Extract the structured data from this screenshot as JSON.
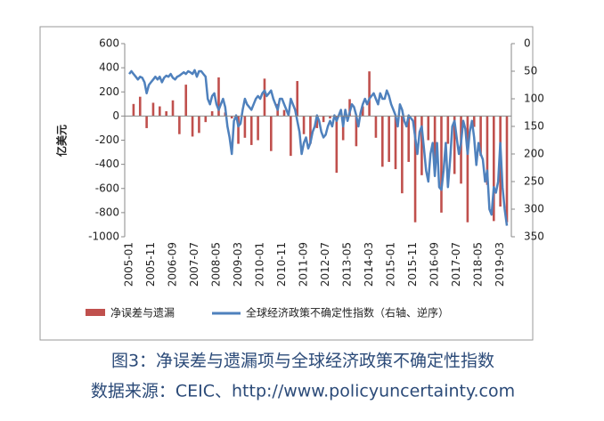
{
  "chart_data": {
    "type": "bar_line",
    "ylabel": "亿美元",
    "ylim": [
      -1000,
      600
    ],
    "yticks": [
      -1000,
      -800,
      -600,
      -400,
      -200,
      0,
      200,
      400,
      600
    ],
    "y2lim": [
      0,
      350
    ],
    "y2ticks": [
      0,
      50,
      100,
      150,
      200,
      250,
      300,
      350
    ],
    "y2_reversed": true,
    "categories": [
      "2005-01",
      null,
      null,
      null,
      null,
      null,
      null,
      null,
      null,
      null,
      "2005-11",
      null,
      null,
      null,
      null,
      null,
      null,
      null,
      null,
      null,
      "2006-09",
      null,
      null,
      null,
      null,
      null,
      null,
      null,
      null,
      null,
      "2007-07",
      null,
      null,
      null,
      null,
      null,
      null,
      null,
      null,
      null,
      "2008-05",
      null,
      null,
      null,
      null,
      null,
      null,
      null,
      null,
      null,
      "2009-03",
      null,
      null,
      null,
      null,
      null,
      null,
      null,
      null,
      null,
      "2010-01",
      null,
      null,
      null,
      null,
      null,
      null,
      null,
      null,
      null,
      "2010-11",
      null,
      null,
      null,
      null,
      null,
      null,
      null,
      null,
      null,
      "2011-09",
      null,
      null,
      null,
      null,
      null,
      null,
      null,
      null,
      null,
      "2012-07",
      null,
      null,
      null,
      null,
      null,
      null,
      null,
      null,
      null,
      "2013-05",
      null,
      null,
      null,
      null,
      null,
      null,
      null,
      null,
      null,
      "2014-03",
      null,
      null,
      null,
      null,
      null,
      null,
      null,
      null,
      null,
      "2015-01",
      null,
      null,
      null,
      null,
      null,
      null,
      null,
      null,
      null,
      "2015-11",
      null,
      null,
      null,
      null,
      null,
      null,
      null,
      null,
      null,
      "2016-09",
      null,
      null,
      null,
      null,
      null,
      null,
      null,
      null,
      null,
      "2017-07",
      null,
      null,
      null,
      null,
      null,
      null,
      null,
      null,
      null,
      "2018-05",
      null,
      null,
      null,
      null,
      null,
      null,
      null,
      null,
      null,
      "2019-03",
      null,
      null,
      null
    ],
    "series": [
      {
        "name": "净误差与遗漏",
        "type": "bar",
        "axis": "y",
        "color": "#c0504d",
        "values": [
          null,
          null,
          100,
          null,
          null,
          160,
          null,
          null,
          -100,
          null,
          null,
          110,
          null,
          null,
          80,
          null,
          null,
          40,
          null,
          null,
          130,
          null,
          null,
          -150,
          null,
          null,
          260,
          null,
          null,
          -170,
          null,
          null,
          -140,
          null,
          null,
          -50,
          null,
          null,
          40,
          null,
          null,
          320,
          null,
          null,
          30,
          null,
          null,
          -20,
          null,
          null,
          -230,
          null,
          null,
          -180,
          null,
          null,
          -240,
          null,
          null,
          -200,
          null,
          null,
          310,
          null,
          null,
          -290,
          null,
          null,
          100,
          null,
          null,
          50,
          null,
          null,
          -330,
          null,
          null,
          290,
          null,
          null,
          -150,
          null,
          null,
          -230,
          null,
          null,
          -100,
          null,
          null,
          -50,
          null,
          null,
          -20,
          null,
          null,
          -470,
          null,
          null,
          -200,
          null,
          null,
          140,
          null,
          null,
          -250,
          null,
          null,
          80,
          null,
          null,
          370,
          null,
          null,
          -180,
          null,
          null,
          -420,
          null,
          null,
          -380,
          null,
          null,
          -440,
          null,
          null,
          -640,
          null,
          null,
          -380,
          null,
          null,
          -880,
          null,
          null,
          -490,
          null,
          null,
          -200,
          null,
          null,
          -420,
          null,
          null,
          -800,
          null,
          null,
          -230,
          null,
          null,
          -480,
          null,
          null,
          -560,
          null,
          null,
          -880,
          null,
          null,
          -90,
          null,
          null,
          -330,
          null,
          null,
          -570,
          null,
          null,
          -870,
          null,
          null,
          -750,
          null,
          null,
          -880
        ]
      },
      {
        "name": "全球经济政策不确定性指数（右轴、逆序）",
        "type": "line",
        "axis": "y2",
        "color": "#4f81bd",
        "values": [
          55,
          50,
          55,
          60,
          65,
          60,
          62,
          70,
          90,
          75,
          70,
          65,
          60,
          65,
          60,
          70,
          62,
          58,
          60,
          55,
          62,
          65,
          60,
          58,
          55,
          52,
          55,
          50,
          52,
          55,
          48,
          60,
          50,
          50,
          55,
          60,
          100,
          110,
          95,
          90,
          110,
          120,
          110,
          100,
          115,
          150,
          170,
          200,
          140,
          130,
          150,
          145,
          120,
          100,
          110,
          115,
          120,
          110,
          100,
          95,
          100,
          90,
          85,
          95,
          90,
          85,
          100,
          110,
          120,
          100,
          100,
          110,
          120,
          130,
          100,
          110,
          120,
          140,
          160,
          200,
          180,
          170,
          190,
          180,
          160,
          150,
          130,
          140,
          160,
          170,
          165,
          150,
          140,
          150,
          130,
          140,
          130,
          120,
          150,
          120,
          140,
          125,
          110,
          115,
          130,
          150,
          125,
          110,
          100,
          110,
          100,
          95,
          90,
          100,
          110,
          90,
          100,
          100,
          85,
          95,
          110,
          120,
          130,
          150,
          110,
          120,
          140,
          150,
          130,
          135,
          140,
          170,
          200,
          160,
          150,
          190,
          230,
          250,
          200,
          180,
          240,
          180,
          260,
          265,
          230,
          180,
          260,
          210,
          150,
          140,
          170,
          200,
          180,
          140,
          155,
          200,
          160,
          140,
          170,
          220,
          180,
          200,
          210,
          250,
          230,
          300,
          310,
          260,
          270,
          250,
          180,
          260,
          300,
          330
        ]
      }
    ]
  },
  "caption": [
    "图3：净误差与遗漏项与全球经济政策不确定性指数",
    "数据来源：CEIC、http://www.policyuncertainty.com"
  ]
}
